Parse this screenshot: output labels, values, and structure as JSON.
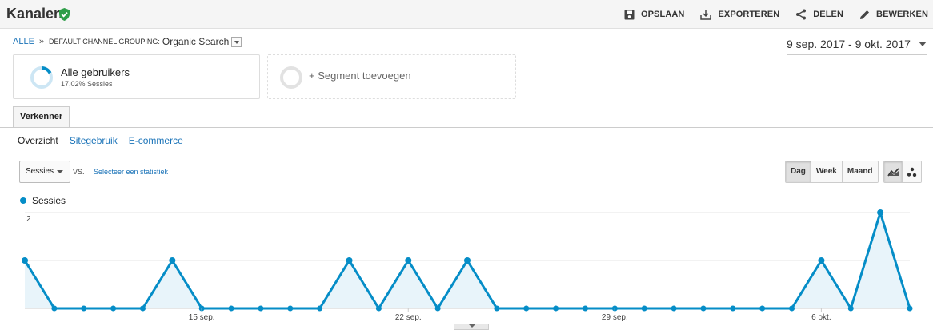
{
  "header": {
    "title": "Kanalen",
    "actions": [
      {
        "label": "OPSLAAN",
        "icon": "save-icon"
      },
      {
        "label": "EXPORTEREN",
        "icon": "export-icon"
      },
      {
        "label": "DELEN",
        "icon": "share-icon"
      },
      {
        "label": "BEWERKEN",
        "icon": "edit-icon"
      }
    ]
  },
  "breadcrumb": {
    "root": "ALLE",
    "separator": "»",
    "grouping": "DEFAULT CHANNEL GROUPING:",
    "value": "Organic Search"
  },
  "date_range": "9 sep. 2017 - 9 okt. 2017",
  "segments": {
    "active": {
      "name": "Alle gebruikers",
      "sub": "17,02% Sessies"
    },
    "add": "+ Segment toevoegen"
  },
  "tabs": {
    "explorer": "Verkenner"
  },
  "subnav": {
    "overview": "Overzicht",
    "site_usage": "Sitegebruik",
    "ecommerce": "E-commerce"
  },
  "metric": {
    "selected": "Sessies",
    "vs": "VS.",
    "select_stat": "Selecteer een statistiek"
  },
  "granularity": {
    "day": "Dag",
    "week": "Week",
    "month": "Maand"
  },
  "colors": {
    "series": "#058dc7",
    "fill": "#e8f4fa",
    "verified": "#2e9e48"
  },
  "chart_data": {
    "type": "line",
    "series": [
      {
        "name": "Sessies",
        "x": [
          "9 sep.",
          "10 sep.",
          "11 sep.",
          "12 sep.",
          "13 sep.",
          "14 sep.",
          "15 sep.",
          "16 sep.",
          "17 sep.",
          "18 sep.",
          "19 sep.",
          "20 sep.",
          "21 sep.",
          "22 sep.",
          "23 sep.",
          "24 sep.",
          "25 sep.",
          "26 sep.",
          "27 sep.",
          "28 sep.",
          "29 sep.",
          "30 sep.",
          "1 okt.",
          "2 okt.",
          "3 okt.",
          "4 okt.",
          "5 okt.",
          "6 okt.",
          "7 okt.",
          "8 okt.",
          "9 okt."
        ],
        "values": [
          1,
          0,
          0,
          0,
          0,
          1,
          0,
          0,
          0,
          0,
          0,
          1,
          0,
          1,
          0,
          1,
          0,
          0,
          0,
          0,
          0,
          0,
          0,
          0,
          0,
          0,
          0,
          1,
          0,
          2,
          0
        ]
      }
    ],
    "xticks": [
      "15 sep.",
      "22 sep.",
      "29 sep.",
      "6 okt."
    ],
    "yticks": [
      "1",
      "2"
    ],
    "ylim": [
      0,
      2
    ],
    "grid": true
  }
}
